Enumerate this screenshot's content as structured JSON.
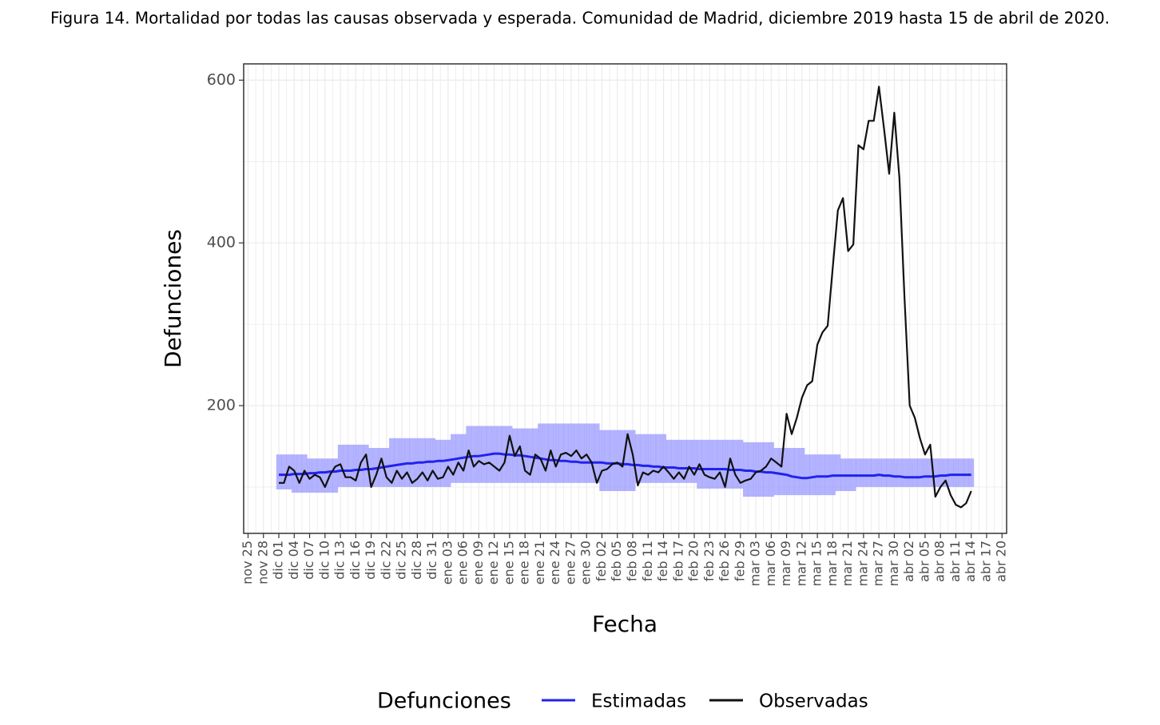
{
  "chart_data": {
    "type": "line",
    "title": "Figura 14. Mortalidad por todas las causas observada y esperada. Comunidad de Madrid, diciembre 2019 hasta 15 de abril de 2020.",
    "x_label": "Fecha",
    "y_label": "Defunciones",
    "legend_title": "Defunciones",
    "ylim": [
      43,
      620
    ],
    "yticks": [
      200,
      400,
      600
    ],
    "grid": true,
    "categories": [
      "nov 25",
      null,
      null,
      "nov 28",
      null,
      null,
      "dic 01",
      null,
      null,
      "dic 04",
      null,
      null,
      "dic 07",
      null,
      null,
      "dic 10",
      null,
      null,
      "dic 13",
      null,
      null,
      "dic 16",
      null,
      null,
      "dic 19",
      null,
      null,
      "dic 22",
      null,
      null,
      "dic 25",
      null,
      null,
      "dic 28",
      null,
      null,
      "dic 31",
      null,
      null,
      "ene 03",
      null,
      null,
      "ene 06",
      null,
      null,
      "ene 09",
      null,
      null,
      "ene 12",
      null,
      null,
      "ene 15",
      null,
      null,
      "ene 18",
      null,
      null,
      "ene 21",
      null,
      null,
      "ene 24",
      null,
      null,
      "ene 27",
      null,
      null,
      "ene 30",
      null,
      null,
      "feb 02",
      null,
      null,
      "feb 05",
      null,
      null,
      "feb 08",
      null,
      null,
      "feb 11",
      null,
      null,
      "feb 14",
      null,
      null,
      "feb 17",
      null,
      null,
      "feb 20",
      null,
      null,
      "feb 23",
      null,
      null,
      "feb 26",
      null,
      null,
      "feb 29",
      null,
      null,
      "mar 03",
      null,
      null,
      "mar 06",
      null,
      null,
      "mar 09",
      null,
      null,
      "mar 12",
      null,
      null,
      "mar 15",
      null,
      null,
      "mar 18",
      null,
      null,
      "mar 21",
      null,
      null,
      "mar 24",
      null,
      null,
      "mar 27",
      null,
      null,
      "mar 30",
      null,
      null,
      "abr 02",
      null,
      null,
      "abr 05",
      null,
      null,
      "abr 08",
      null,
      null,
      "abr 11",
      null,
      null,
      "abr 14",
      null,
      null,
      "abr 17",
      null,
      null,
      "abr 20"
    ],
    "band": {
      "color": "#9a9aff",
      "upper": [
        null,
        null,
        null,
        null,
        null,
        null,
        140,
        140,
        140,
        140,
        140,
        140,
        135,
        135,
        135,
        135,
        135,
        135,
        152,
        152,
        152,
        152,
        152,
        152,
        148,
        148,
        148,
        148,
        160,
        160,
        160,
        160,
        160,
        160,
        160,
        160,
        160,
        158,
        158,
        158,
        165,
        165,
        165,
        175,
        175,
        175,
        175,
        175,
        175,
        175,
        175,
        175,
        172,
        172,
        172,
        172,
        172,
        178,
        178,
        178,
        178,
        178,
        178,
        178,
        178,
        178,
        178,
        178,
        178,
        170,
        170,
        170,
        170,
        170,
        170,
        170,
        165,
        165,
        165,
        165,
        165,
        165,
        158,
        158,
        158,
        158,
        158,
        158,
        158,
        158,
        158,
        158,
        158,
        158,
        158,
        158,
        158,
        155,
        155,
        155,
        155,
        155,
        155,
        148,
        148,
        148,
        148,
        148,
        148,
        140,
        140,
        140,
        140,
        140,
        140,
        140,
        135,
        135,
        135,
        135,
        135,
        135,
        135,
        135,
        135,
        135,
        135,
        135,
        135,
        135,
        135,
        135,
        135,
        135,
        135,
        135,
        135,
        135,
        135,
        135,
        135,
        135,
        null,
        null,
        null,
        null,
        null,
        null
      ],
      "lower": [
        null,
        null,
        null,
        null,
        null,
        null,
        97,
        97,
        97,
        93,
        93,
        93,
        93,
        93,
        93,
        93,
        93,
        93,
        100,
        100,
        100,
        100,
        100,
        100,
        100,
        100,
        100,
        100,
        100,
        100,
        100,
        100,
        100,
        100,
        100,
        100,
        100,
        100,
        100,
        100,
        105,
        105,
        105,
        105,
        105,
        105,
        105,
        105,
        105,
        105,
        105,
        105,
        105,
        105,
        105,
        105,
        105,
        105,
        105,
        105,
        105,
        105,
        105,
        105,
        105,
        105,
        105,
        105,
        105,
        95,
        95,
        95,
        95,
        95,
        95,
        95,
        105,
        105,
        105,
        105,
        105,
        105,
        105,
        105,
        105,
        105,
        105,
        105,
        98,
        98,
        98,
        98,
        98,
        98,
        98,
        98,
        98,
        88,
        88,
        88,
        88,
        88,
        88,
        90,
        90,
        90,
        90,
        90,
        90,
        90,
        90,
        90,
        90,
        90,
        90,
        95,
        95,
        95,
        95,
        100,
        100,
        100,
        100,
        100,
        100,
        100,
        100,
        100,
        100,
        100,
        100,
        100,
        100,
        100,
        100,
        100,
        100,
        100,
        100,
        100,
        100,
        100,
        null,
        null,
        null,
        null,
        null,
        null
      ]
    },
    "series": [
      {
        "name": "Estimadas",
        "color": "#2222ee",
        "values": [
          null,
          null,
          null,
          null,
          null,
          null,
          115,
          115,
          115,
          116,
          116,
          116,
          117,
          117,
          118,
          118,
          119,
          119,
          120,
          120,
          120,
          121,
          121,
          122,
          122,
          123,
          124,
          125,
          126,
          127,
          128,
          129,
          129,
          130,
          130,
          131,
          131,
          132,
          132,
          133,
          134,
          135,
          136,
          137,
          138,
          138,
          139,
          140,
          141,
          141,
          140,
          140,
          139,
          139,
          138,
          137,
          136,
          135,
          134,
          133,
          133,
          132,
          132,
          131,
          131,
          130,
          130,
          130,
          130,
          130,
          129,
          129,
          129,
          128,
          128,
          127,
          127,
          126,
          126,
          125,
          125,
          124,
          124,
          124,
          123,
          123,
          123,
          123,
          122,
          122,
          122,
          122,
          122,
          122,
          121,
          121,
          121,
          120,
          120,
          119,
          119,
          118,
          118,
          117,
          116,
          115,
          113,
          112,
          111,
          111,
          112,
          113,
          113,
          113,
          114,
          114,
          114,
          114,
          114,
          114,
          114,
          114,
          114,
          115,
          114,
          114,
          113,
          113,
          112,
          112,
          112,
          112,
          113,
          113,
          113,
          114,
          114,
          115,
          115,
          115,
          115,
          115,
          null,
          null,
          null,
          null,
          null,
          null
        ]
      },
      {
        "name": "Observadas",
        "color": "#111111",
        "values": [
          null,
          null,
          null,
          null,
          null,
          null,
          105,
          105,
          125,
          120,
          105,
          120,
          110,
          115,
          112,
          100,
          115,
          125,
          128,
          112,
          112,
          108,
          130,
          140,
          100,
          115,
          135,
          112,
          105,
          120,
          110,
          118,
          105,
          110,
          118,
          108,
          120,
          110,
          112,
          125,
          115,
          130,
          120,
          145,
          125,
          132,
          128,
          130,
          125,
          120,
          130,
          163,
          138,
          150,
          120,
          115,
          140,
          135,
          120,
          145,
          125,
          140,
          142,
          138,
          145,
          135,
          140,
          130,
          105,
          120,
          122,
          128,
          130,
          125,
          165,
          140,
          102,
          118,
          115,
          120,
          118,
          125,
          118,
          110,
          118,
          110,
          125,
          115,
          128,
          115,
          112,
          110,
          118,
          100,
          135,
          115,
          105,
          108,
          110,
          118,
          120,
          125,
          135,
          130,
          125,
          190,
          165,
          185,
          210,
          225,
          230,
          275,
          290,
          298,
          370,
          440,
          455,
          390,
          398,
          520,
          515,
          550,
          550,
          592,
          540,
          485,
          560,
          480,
          330,
          200,
          185,
          160,
          140,
          152,
          88,
          100,
          108,
          90,
          78,
          75,
          80,
          95,
          null,
          null,
          null,
          null,
          null,
          null
        ]
      }
    ]
  }
}
